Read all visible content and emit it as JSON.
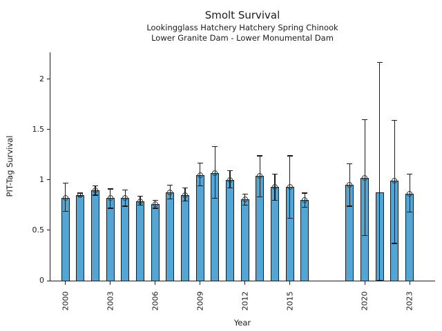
{
  "chart_data": {
    "type": "bar",
    "title": "Smolt Survival",
    "subtitle_line1": "Lookingglass Hatchery Hatchery Spring Chinook",
    "subtitle_line2": "Lower Granite Dam - Lower Monumental Dam",
    "xlabel": "Year",
    "ylabel": "PIT-Tag Survival",
    "bar_color": "#53a5d3",
    "edge_color": "#1a1a1a",
    "error_bar_color": "#1a1a1a",
    "marker_style": "open-circle",
    "grid": false,
    "legend": null,
    "xlim": [
      1998.95,
      2024.7
    ],
    "ylim": [
      0,
      2.267
    ],
    "x_ticks": [
      2000,
      2003,
      2006,
      2009,
      2012,
      2015,
      2020,
      2023
    ],
    "y_ticks": [
      0,
      0.5,
      1,
      1.5,
      2
    ],
    "series": [
      {
        "year": 2000,
        "value": 0.82,
        "ci_low": 0.69,
        "ci_high": 0.97,
        "marker": true
      },
      {
        "year": 2001,
        "value": 0.85,
        "ci_low": 0.84,
        "ci_high": 0.87,
        "marker": true
      },
      {
        "year": 2002,
        "value": 0.9,
        "ci_low": 0.85,
        "ci_high": 0.94,
        "marker": true
      },
      {
        "year": 2003,
        "value": 0.82,
        "ci_low": 0.72,
        "ci_high": 0.91,
        "marker": true
      },
      {
        "year": 2004,
        "value": 0.82,
        "ci_low": 0.74,
        "ci_high": 0.9,
        "marker": true
      },
      {
        "year": 2005,
        "value": 0.79,
        "ci_low": 0.75,
        "ci_high": 0.84,
        "marker": true
      },
      {
        "year": 2006,
        "value": 0.76,
        "ci_low": 0.72,
        "ci_high": 0.8,
        "marker": true
      },
      {
        "year": 2007,
        "value": 0.88,
        "ci_low": 0.81,
        "ci_high": 0.95,
        "marker": true
      },
      {
        "year": 2008,
        "value": 0.85,
        "ci_low": 0.79,
        "ci_high": 0.92,
        "marker": true
      },
      {
        "year": 2009,
        "value": 1.05,
        "ci_low": 0.94,
        "ci_high": 1.17,
        "marker": true
      },
      {
        "year": 2010,
        "value": 1.07,
        "ci_low": 0.82,
        "ci_high": 1.33,
        "marker": true
      },
      {
        "year": 2011,
        "value": 1.0,
        "ci_low": 0.92,
        "ci_high": 1.09,
        "marker": true
      },
      {
        "year": 2012,
        "value": 0.81,
        "ci_low": 0.75,
        "ci_high": 0.86,
        "marker": true
      },
      {
        "year": 2013,
        "value": 1.04,
        "ci_low": 0.83,
        "ci_high": 1.24,
        "marker": true
      },
      {
        "year": 2014,
        "value": 0.93,
        "ci_low": 0.8,
        "ci_high": 1.06,
        "marker": true
      },
      {
        "year": 2015,
        "value": 0.93,
        "ci_low": 0.62,
        "ci_high": 1.24,
        "marker": true
      },
      {
        "year": 2016,
        "value": 0.8,
        "ci_low": 0.73,
        "ci_high": 0.87,
        "marker": true
      },
      {
        "year": 2019,
        "value": 0.95,
        "ci_low": 0.74,
        "ci_high": 1.16,
        "marker": true
      },
      {
        "year": 2020,
        "value": 1.02,
        "ci_low": 0.45,
        "ci_high": 1.6,
        "marker": true
      },
      {
        "year": 2021,
        "value": 0.88,
        "ci_low": 0.0,
        "ci_high": 2.17,
        "marker": false
      },
      {
        "year": 2022,
        "value": 0.99,
        "ci_low": 0.37,
        "ci_high": 1.59,
        "marker": true
      },
      {
        "year": 2023,
        "value": 0.86,
        "ci_low": 0.68,
        "ci_high": 1.06,
        "marker": true
      }
    ]
  }
}
